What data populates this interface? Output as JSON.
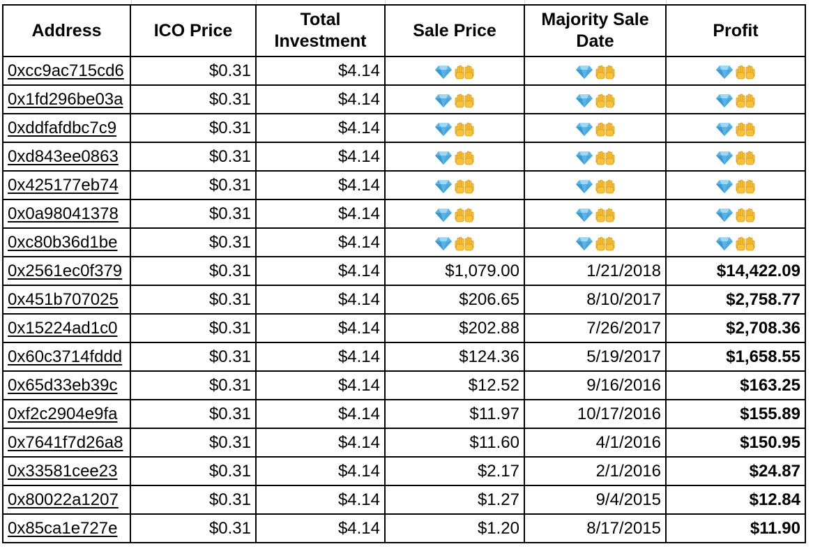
{
  "columns": {
    "address": "Address",
    "ico_price": "ICO Price",
    "total_investment": "Total Investment",
    "sale_price": "Sale Price",
    "majority_sale_date": "Majority Sale Date",
    "profit": "Profit"
  },
  "icons": {
    "diamond_color": "#5ab4e8",
    "hands_color": "#f7c23c"
  },
  "rows": [
    {
      "address": "0xcc9ac715cd6",
      "ico_price": "$0.31",
      "total_investment": "$4.14",
      "sale_price": "diamond-hands",
      "date": "diamond-hands",
      "profit": "diamond-hands"
    },
    {
      "address": "0x1fd296be03a",
      "ico_price": "$0.31",
      "total_investment": "$4.14",
      "sale_price": "diamond-hands",
      "date": "diamond-hands",
      "profit": "diamond-hands"
    },
    {
      "address": "0xddfafdbc7c9",
      "ico_price": "$0.31",
      "total_investment": "$4.14",
      "sale_price": "diamond-hands",
      "date": "diamond-hands",
      "profit": "diamond-hands"
    },
    {
      "address": "0xd843ee0863",
      "ico_price": "$0.31",
      "total_investment": "$4.14",
      "sale_price": "diamond-hands",
      "date": "diamond-hands",
      "profit": "diamond-hands"
    },
    {
      "address": "0x425177eb74",
      "ico_price": "$0.31",
      "total_investment": "$4.14",
      "sale_price": "diamond-hands",
      "date": "diamond-hands",
      "profit": "diamond-hands"
    },
    {
      "address": "0x0a98041378",
      "ico_price": "$0.31",
      "total_investment": "$4.14",
      "sale_price": "diamond-hands",
      "date": "diamond-hands",
      "profit": "diamond-hands"
    },
    {
      "address": "0xc80b36d1be",
      "ico_price": "$0.31",
      "total_investment": "$4.14",
      "sale_price": "diamond-hands",
      "date": "diamond-hands",
      "profit": "diamond-hands"
    },
    {
      "address": "0x2561ec0f379",
      "ico_price": "$0.31",
      "total_investment": "$4.14",
      "sale_price": "$1,079.00",
      "date": "1/21/2018",
      "profit": "$14,422.09"
    },
    {
      "address": "0x451b707025",
      "ico_price": "$0.31",
      "total_investment": "$4.14",
      "sale_price": "$206.65",
      "date": "8/10/2017",
      "profit": "$2,758.77"
    },
    {
      "address": "0x15224ad1c0",
      "ico_price": "$0.31",
      "total_investment": "$4.14",
      "sale_price": "$202.88",
      "date": "7/26/2017",
      "profit": "$2,708.36"
    },
    {
      "address": "0x60c3714fddd",
      "ico_price": "$0.31",
      "total_investment": "$4.14",
      "sale_price": "$124.36",
      "date": "5/19/2017",
      "profit": "$1,658.55"
    },
    {
      "address": "0x65d33eb39c",
      "ico_price": "$0.31",
      "total_investment": "$4.14",
      "sale_price": "$12.52",
      "date": "9/16/2016",
      "profit": "$163.25"
    },
    {
      "address": "0xf2c2904e9fa",
      "ico_price": "$0.31",
      "total_investment": "$4.14",
      "sale_price": "$11.97",
      "date": "10/17/2016",
      "profit": "$155.89"
    },
    {
      "address": "0x7641f7d26a8",
      "ico_price": "$0.31",
      "total_investment": "$4.14",
      "sale_price": "$11.60",
      "date": "4/1/2016",
      "profit": "$150.95"
    },
    {
      "address": "0x33581cee23",
      "ico_price": "$0.31",
      "total_investment": "$4.14",
      "sale_price": "$2.17",
      "date": "2/1/2016",
      "profit": "$24.87"
    },
    {
      "address": "0x80022a1207",
      "ico_price": "$0.31",
      "total_investment": "$4.14",
      "sale_price": "$1.27",
      "date": "9/4/2015",
      "profit": "$12.84"
    },
    {
      "address": "0x85ca1e727e",
      "ico_price": "$0.31",
      "total_investment": "$4.14",
      "sale_price": "$1.20",
      "date": "8/17/2015",
      "profit": "$11.90"
    }
  ]
}
